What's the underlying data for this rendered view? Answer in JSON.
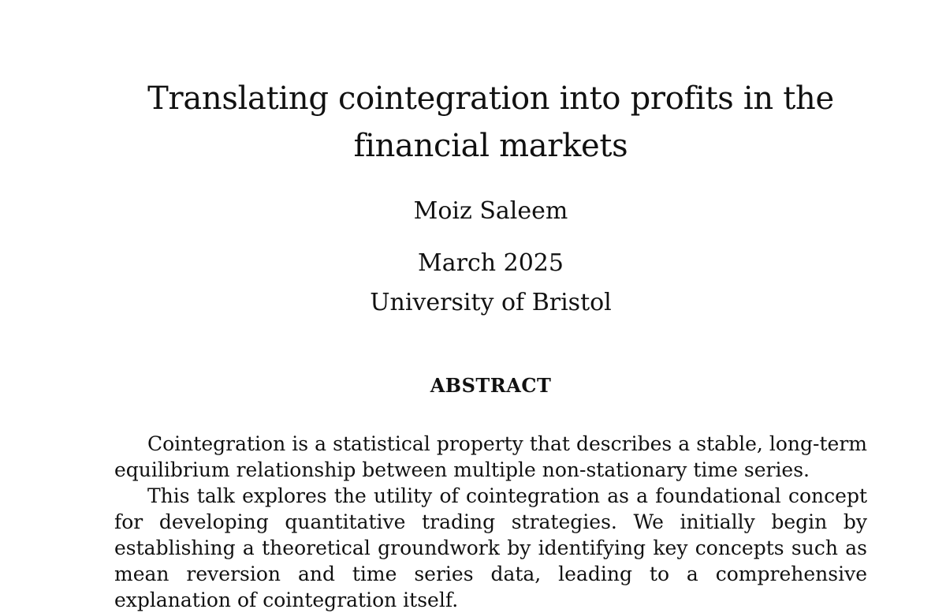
{
  "paper": {
    "title": "Translating cointegration into profits in the financial markets",
    "author": "Moiz Saleem",
    "date": "March 2025",
    "affiliation": "University of Bristol",
    "abstract_heading": "ABSTRACT",
    "abstract_paragraphs": [
      "Cointegration is a statistical property that describes a stable, long-term equilibrium relationship between multiple non-stationary time series.",
      "This talk explores the utility of cointegration as a foundational concept for developing quantitative trading strategies. We initially begin by establishing a theoretical groundwork by identifying key concepts such as mean reversion and time series data, leading to a comprehensive explanation of cointegration itself."
    ]
  }
}
